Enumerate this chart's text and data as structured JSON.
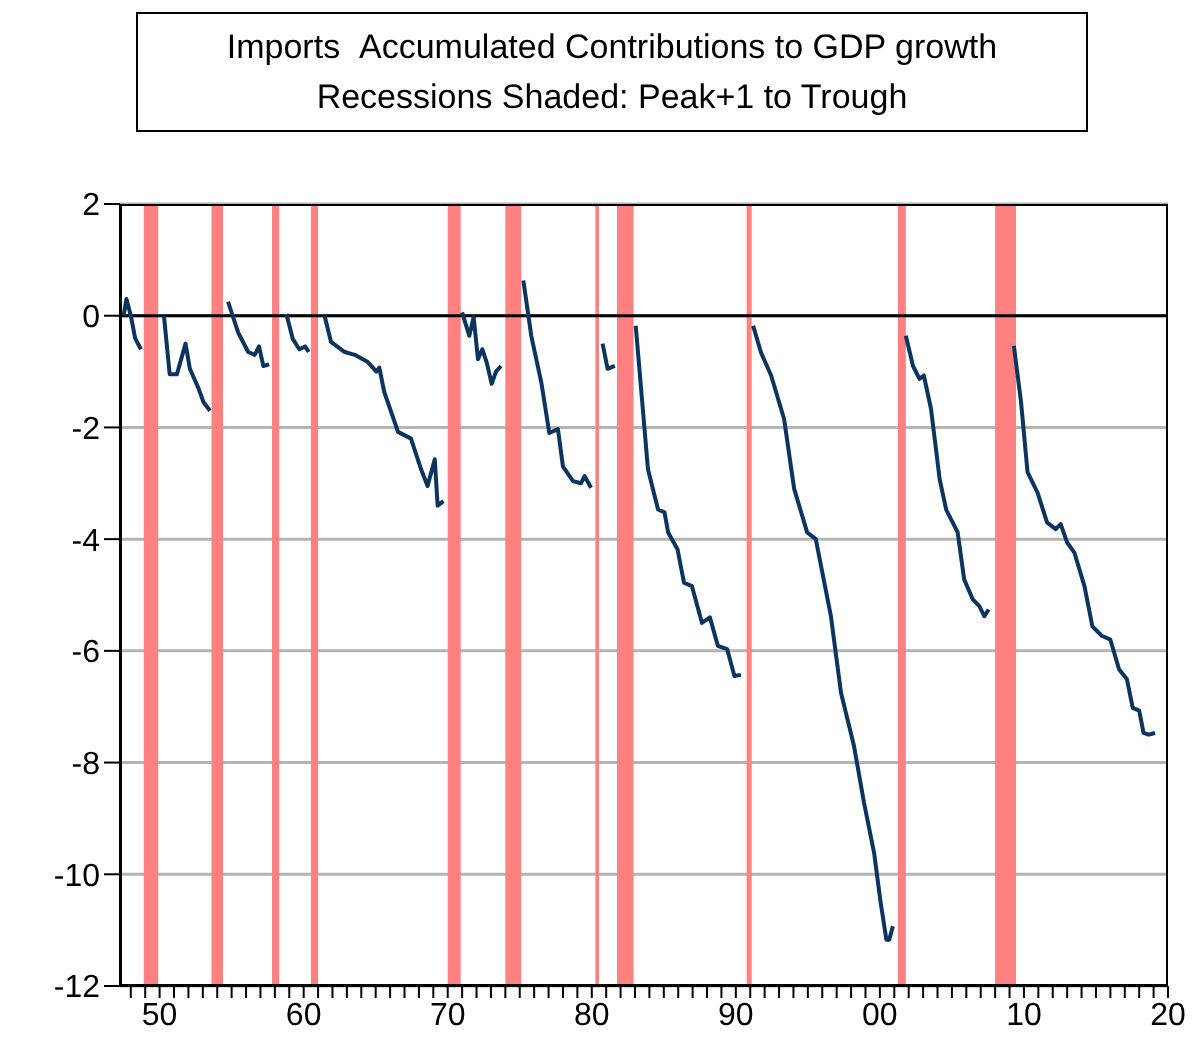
{
  "chart_data": {
    "type": "line",
    "title": "Imports  Accumulated Contributions to GDP growth",
    "subtitle": "Recessions Shaded: Peak+1 to Trough",
    "x": [
      1947.5,
      1947.7,
      1948.0,
      1948.3,
      1948.7,
      1949.5,
      1950.3,
      1950.7,
      1951.2,
      1951.8,
      1952.1,
      1952.7,
      1953.05,
      1953.5,
      1954.0,
      1954.75,
      1955.45,
      1956.15,
      1956.6,
      1956.9,
      1957.2,
      1957.6,
      1958.0,
      1958.8,
      1959.25,
      1959.7,
      1960.1,
      1960.35,
      1960.7,
      1961.45,
      1961.9,
      1962.85,
      1963.55,
      1964.45,
      1965.05,
      1965.25,
      1965.6,
      1966.55,
      1967.45,
      1968.15,
      1968.6,
      1969.1,
      1969.3,
      1969.7,
      1970.4,
      1971.0,
      1971.5,
      1971.8,
      1972.1,
      1972.4,
      1972.7,
      1973.05,
      1973.35,
      1973.7,
      1974.5,
      1975.25,
      1975.8,
      1976.5,
      1977.05,
      1977.65,
      1978.0,
      1978.7,
      1979.25,
      1979.5,
      1979.95,
      1980.3,
      1980.75,
      1981.1,
      1981.6,
      1982.3,
      1983.05,
      1983.9,
      1984.6,
      1985.05,
      1985.3,
      1985.95,
      1986.4,
      1986.95,
      1987.65,
      1988.2,
      1988.75,
      1989.4,
      1989.9,
      1990.35,
      1990.9,
      1991.2,
      1991.75,
      1992.45,
      1993.35,
      1994.05,
      1994.95,
      1995.55,
      1996.6,
      1997.3,
      1998.2,
      1998.9,
      1999.6,
      2000.05,
      2000.45,
      2000.65,
      2000.9,
      2001.5,
      2001.8,
      2002.3,
      2002.75,
      2003.05,
      2003.55,
      2004.15,
      2004.6,
      2005.4,
      2005.85,
      2006.45,
      2006.9,
      2007.25,
      2007.55,
      2008.5,
      2009.3,
      2009.8,
      2010.25,
      2010.95,
      2011.6,
      2012.2,
      2012.55,
      2013.0,
      2013.5,
      2014.2,
      2014.75,
      2015.4,
      2016.0,
      2016.6,
      2017.15,
      2017.55,
      2018.0,
      2018.3,
      2018.65,
      2019.1
    ],
    "series": [
      {
        "color": "#0b3560",
        "values": [
          0,
          0.3,
          0.0,
          -0.4,
          -0.6,
          null,
          0,
          -1.05,
          -1.05,
          -0.5,
          -0.95,
          -1.3,
          -1.55,
          -1.7,
          null,
          0.25,
          -0.3,
          -0.65,
          -0.7,
          -0.55,
          -0.9,
          -0.87,
          null,
          0.03,
          -0.42,
          -0.6,
          -0.55,
          -0.65,
          null,
          0,
          -0.47,
          -0.65,
          -0.7,
          -0.83,
          -1.0,
          -0.93,
          -1.37,
          -2.08,
          -2.2,
          -2.75,
          -3.05,
          -2.57,
          -3.4,
          -3.32,
          null,
          0.06,
          -0.36,
          -0.02,
          -0.78,
          -0.6,
          -0.83,
          -1.22,
          -1.0,
          -0.9,
          null,
          0.63,
          -0.36,
          -1.2,
          -2.1,
          -2.03,
          -2.7,
          -2.96,
          -3.0,
          -2.87,
          -3.08,
          null,
          -0.5,
          -0.95,
          -0.9,
          null,
          -0.18,
          -2.75,
          -3.47,
          -3.52,
          -3.88,
          -4.18,
          -4.78,
          -4.84,
          -5.5,
          -5.4,
          -5.91,
          -5.97,
          -6.45,
          -6.43,
          null,
          -0.18,
          -0.66,
          -1.07,
          -1.85,
          -3.1,
          -3.88,
          -4.0,
          -5.38,
          -6.75,
          -7.7,
          -8.72,
          -9.62,
          -10.5,
          -11.17,
          -11.17,
          -10.93,
          null,
          -0.36,
          -0.9,
          -1.13,
          -1.07,
          -1.67,
          -2.93,
          -3.47,
          -3.88,
          -4.72,
          -5.08,
          -5.2,
          -5.38,
          -5.26,
          null,
          -0.54,
          -1.55,
          -2.8,
          -3.17,
          -3.7,
          -3.82,
          -3.73,
          -4.06,
          -4.24,
          -4.84,
          -5.56,
          -5.73,
          -5.8,
          -6.33,
          -6.51,
          -7.02,
          -7.07,
          -7.47,
          -7.5,
          -7.47
        ]
      }
    ],
    "xlim": [
      1947.25,
      2020
    ],
    "xticks": [
      {
        "value": 1948,
        "label": null
      },
      {
        "value": 1949,
        "label": null
      },
      {
        "value": 1950,
        "label": "50"
      },
      {
        "value": 1951,
        "label": null
      },
      {
        "value": 1952,
        "label": null
      },
      {
        "value": 1953,
        "label": null
      },
      {
        "value": 1954,
        "label": null
      },
      {
        "value": 1955,
        "label": null
      },
      {
        "value": 1956,
        "label": null
      },
      {
        "value": 1957,
        "label": null
      },
      {
        "value": 1958,
        "label": null
      },
      {
        "value": 1959,
        "label": null
      },
      {
        "value": 1960,
        "label": "60"
      },
      {
        "value": 1961,
        "label": null
      },
      {
        "value": 1962,
        "label": null
      },
      {
        "value": 1963,
        "label": null
      },
      {
        "value": 1964,
        "label": null
      },
      {
        "value": 1965,
        "label": null
      },
      {
        "value": 1966,
        "label": null
      },
      {
        "value": 1967,
        "label": null
      },
      {
        "value": 1968,
        "label": null
      },
      {
        "value": 1969,
        "label": null
      },
      {
        "value": 1970,
        "label": "70"
      },
      {
        "value": 1971,
        "label": null
      },
      {
        "value": 1972,
        "label": null
      },
      {
        "value": 1973,
        "label": null
      },
      {
        "value": 1974,
        "label": null
      },
      {
        "value": 1975,
        "label": null
      },
      {
        "value": 1976,
        "label": null
      },
      {
        "value": 1977,
        "label": null
      },
      {
        "value": 1978,
        "label": null
      },
      {
        "value": 1979,
        "label": null
      },
      {
        "value": 1980,
        "label": "80"
      },
      {
        "value": 1981,
        "label": null
      },
      {
        "value": 1982,
        "label": null
      },
      {
        "value": 1983,
        "label": null
      },
      {
        "value": 1984,
        "label": null
      },
      {
        "value": 1985,
        "label": null
      },
      {
        "value": 1986,
        "label": null
      },
      {
        "value": 1987,
        "label": null
      },
      {
        "value": 1988,
        "label": null
      },
      {
        "value": 1989,
        "label": null
      },
      {
        "value": 1990,
        "label": "90"
      },
      {
        "value": 1991,
        "label": null
      },
      {
        "value": 1992,
        "label": null
      },
      {
        "value": 1993,
        "label": null
      },
      {
        "value": 1994,
        "label": null
      },
      {
        "value": 1995,
        "label": null
      },
      {
        "value": 1996,
        "label": null
      },
      {
        "value": 1997,
        "label": null
      },
      {
        "value": 1998,
        "label": null
      },
      {
        "value": 1999,
        "label": null
      },
      {
        "value": 2000,
        "label": "00"
      },
      {
        "value": 2001,
        "label": null
      },
      {
        "value": 2002,
        "label": null
      },
      {
        "value": 2003,
        "label": null
      },
      {
        "value": 2004,
        "label": null
      },
      {
        "value": 2005,
        "label": null
      },
      {
        "value": 2006,
        "label": null
      },
      {
        "value": 2007,
        "label": null
      },
      {
        "value": 2008,
        "label": null
      },
      {
        "value": 2009,
        "label": null
      },
      {
        "value": 2010,
        "label": "10"
      },
      {
        "value": 2011,
        "label": null
      },
      {
        "value": 2012,
        "label": null
      },
      {
        "value": 2013,
        "label": null
      },
      {
        "value": 2014,
        "label": null
      },
      {
        "value": 2015,
        "label": null
      },
      {
        "value": 2016,
        "label": null
      },
      {
        "value": 2017,
        "label": null
      },
      {
        "value": 2018,
        "label": null
      },
      {
        "value": 2019,
        "label": null
      },
      {
        "value": 2020,
        "label": "20"
      }
    ],
    "ylim": [
      -12,
      2
    ],
    "yticks": [
      -12,
      -10,
      -8,
      -6,
      -4,
      -2,
      0,
      2
    ],
    "grid": "y",
    "line_style": "solid",
    "ref_lines": [
      {
        "axis": "y",
        "value": 0,
        "color": "#000000"
      }
    ],
    "bands": [
      {
        "axis": "x",
        "from": 1948.9,
        "to": 1949.9,
        "color": "#ff8080"
      },
      {
        "axis": "x",
        "from": 1953.6,
        "to": 1954.4,
        "color": "#ff8080"
      },
      {
        "axis": "x",
        "from": 1957.8,
        "to": 1958.3,
        "color": "#ff8080"
      },
      {
        "axis": "x",
        "from": 1960.5,
        "to": 1961.0,
        "color": "#ff8080"
      },
      {
        "axis": "x",
        "from": 1970.0,
        "to": 1970.9,
        "color": "#ff8080"
      },
      {
        "axis": "x",
        "from": 1974.0,
        "to": 1975.1,
        "color": "#ff8080"
      },
      {
        "axis": "x",
        "from": 1980.25,
        "to": 1980.5,
        "color": "#ff8080"
      },
      {
        "axis": "x",
        "from": 1981.75,
        "to": 1982.9,
        "color": "#ff8080"
      },
      {
        "axis": "x",
        "from": 1990.75,
        "to": 1991.1,
        "color": "#ff8080"
      },
      {
        "axis": "x",
        "from": 2001.25,
        "to": 2001.8,
        "color": "#ff8080"
      },
      {
        "axis": "x",
        "from": 2008.0,
        "to": 2009.45,
        "color": "#ff8080"
      }
    ]
  }
}
